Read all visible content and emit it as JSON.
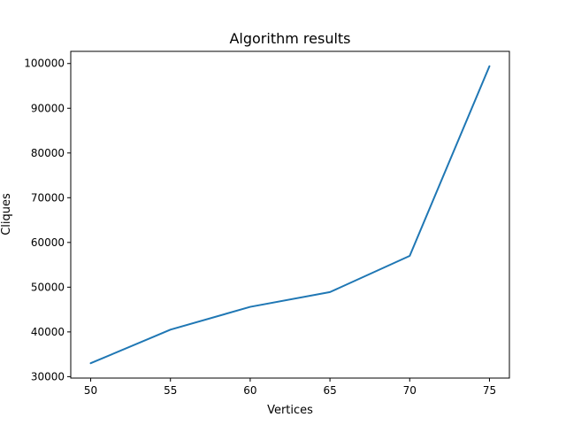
{
  "chart_data": {
    "type": "line",
    "title": "Algorithm results",
    "xlabel": "Vertices",
    "ylabel": "Cliques",
    "x": [
      50,
      55,
      60,
      65,
      70,
      75
    ],
    "series": [
      {
        "values": [
          33000,
          40500,
          45600,
          48900,
          57000,
          99400
        ]
      }
    ],
    "xticks": [
      50,
      55,
      60,
      65,
      70,
      75
    ],
    "yticks": [
      30000,
      40000,
      50000,
      60000,
      70000,
      80000,
      90000,
      100000
    ],
    "xlim": [
      48.75,
      76.25
    ],
    "ylim": [
      29680,
      102720
    ],
    "grid": false,
    "line_color": "#1f77b4"
  }
}
